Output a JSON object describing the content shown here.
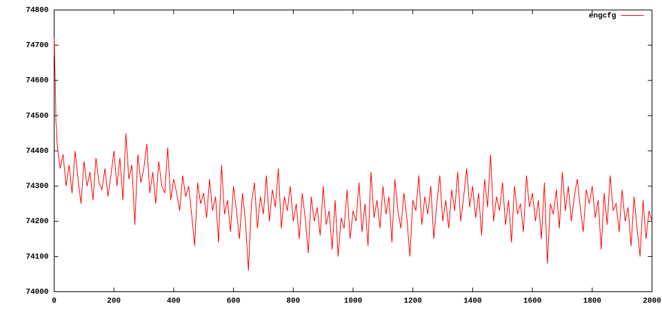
{
  "chart_data": {
    "type": "line",
    "series": [
      {
        "name": "engcfg",
        "color": "#ff0000",
        "x": [
          0,
          2,
          4,
          6,
          8,
          10,
          20,
          30,
          40,
          50,
          60,
          70,
          80,
          90,
          100,
          110,
          120,
          130,
          140,
          150,
          160,
          170,
          180,
          190,
          200,
          210,
          220,
          230,
          240,
          250,
          260,
          270,
          280,
          290,
          300,
          310,
          320,
          330,
          340,
          350,
          360,
          370,
          380,
          390,
          400,
          410,
          420,
          430,
          440,
          450,
          460,
          470,
          480,
          490,
          500,
          510,
          520,
          530,
          540,
          550,
          560,
          570,
          580,
          590,
          600,
          610,
          620,
          630,
          640,
          650,
          660,
          670,
          680,
          690,
          700,
          710,
          720,
          730,
          740,
          750,
          760,
          770,
          780,
          790,
          800,
          810,
          820,
          830,
          840,
          850,
          860,
          870,
          880,
          890,
          900,
          910,
          920,
          930,
          940,
          950,
          960,
          970,
          980,
          990,
          1000,
          1010,
          1020,
          1030,
          1040,
          1050,
          1060,
          1070,
          1080,
          1090,
          1100,
          1110,
          1120,
          1130,
          1140,
          1150,
          1160,
          1170,
          1180,
          1190,
          1200,
          1210,
          1220,
          1230,
          1240,
          1250,
          1260,
          1270,
          1280,
          1290,
          1300,
          1310,
          1320,
          1330,
          1340,
          1350,
          1360,
          1370,
          1380,
          1390,
          1400,
          1410,
          1420,
          1430,
          1440,
          1450,
          1460,
          1470,
          1480,
          1490,
          1500,
          1510,
          1520,
          1530,
          1540,
          1550,
          1560,
          1570,
          1580,
          1590,
          1600,
          1610,
          1620,
          1630,
          1640,
          1650,
          1660,
          1670,
          1680,
          1690,
          1700,
          1710,
          1720,
          1730,
          1740,
          1750,
          1760,
          1770,
          1780,
          1790,
          1800,
          1810,
          1820,
          1830,
          1840,
          1850,
          1860,
          1870,
          1880,
          1890,
          1900,
          1910,
          1920,
          1930,
          1940,
          1950,
          1960,
          1970,
          1980,
          1990,
          2000
        ],
        "values": [
          74720,
          74650,
          74600,
          74480,
          74460,
          74420,
          74350,
          74390,
          74300,
          74360,
          74280,
          74400,
          74320,
          74250,
          74370,
          74300,
          74340,
          74260,
          74380,
          74310,
          74290,
          74350,
          74270,
          74330,
          74400,
          74300,
          74380,
          74260,
          74450,
          74320,
          74360,
          74190,
          74390,
          74310,
          74350,
          74420,
          74280,
          74340,
          74250,
          74370,
          74300,
          74280,
          74410,
          74260,
          74320,
          74280,
          74230,
          74330,
          74270,
          74300,
          74220,
          74130,
          74310,
          74250,
          74280,
          74210,
          74320,
          74230,
          74270,
          74140,
          74360,
          74220,
          74260,
          74170,
          74300,
          74230,
          74150,
          74280,
          74200,
          74060,
          74250,
          74310,
          74180,
          74270,
          74220,
          74330,
          74200,
          74290,
          74240,
          74350,
          74180,
          74270,
          74230,
          74300,
          74200,
          74250,
          74150,
          74280,
          74210,
          74110,
          74270,
          74200,
          74240,
          74160,
          74300,
          74190,
          74230,
          74120,
          74260,
          74100,
          74210,
          74180,
          74290,
          74150,
          74230,
          74200,
          74310,
          74170,
          74250,
          74130,
          74340,
          74210,
          74260,
          74180,
          74300,
          74220,
          74270,
          74140,
          74320,
          74230,
          74180,
          74280,
          74210,
          74100,
          74260,
          74230,
          74330,
          74190,
          74270,
          74220,
          74300,
          74150,
          74250,
          74330,
          74200,
          74260,
          74180,
          74290,
          74230,
          74340,
          74200,
          74270,
          74350,
          74240,
          74300,
          74210,
          74280,
          74160,
          74320,
          74240,
          74390,
          74200,
          74270,
          74230,
          74310,
          74190,
          74260,
          74140,
          74300,
          74220,
          74250,
          74170,
          74330,
          74240,
          74280,
          74200,
          74260,
          74150,
          74310,
          74080,
          74250,
          74220,
          74290,
          74180,
          74340,
          74230,
          74300,
          74200,
          74270,
          74320,
          74240,
          74170,
          74290,
          74250,
          74300,
          74210,
          74260,
          74120,
          74280,
          74190,
          74330,
          74230,
          74250,
          74170,
          74290,
          74200,
          74240,
          74130,
          74270,
          74180,
          74100,
          74260,
          74150,
          74230,
          74200
        ]
      }
    ],
    "xlim": [
      0,
      2000
    ],
    "xticks": [
      0,
      200,
      400,
      600,
      800,
      1000,
      1200,
      1400,
      1600,
      1800,
      2000
    ],
    "ylim": [
      74000,
      74800
    ],
    "yticks": [
      74000,
      74100,
      74200,
      74300,
      74400,
      74500,
      74600,
      74700,
      74800
    ],
    "legend": "top-right"
  }
}
